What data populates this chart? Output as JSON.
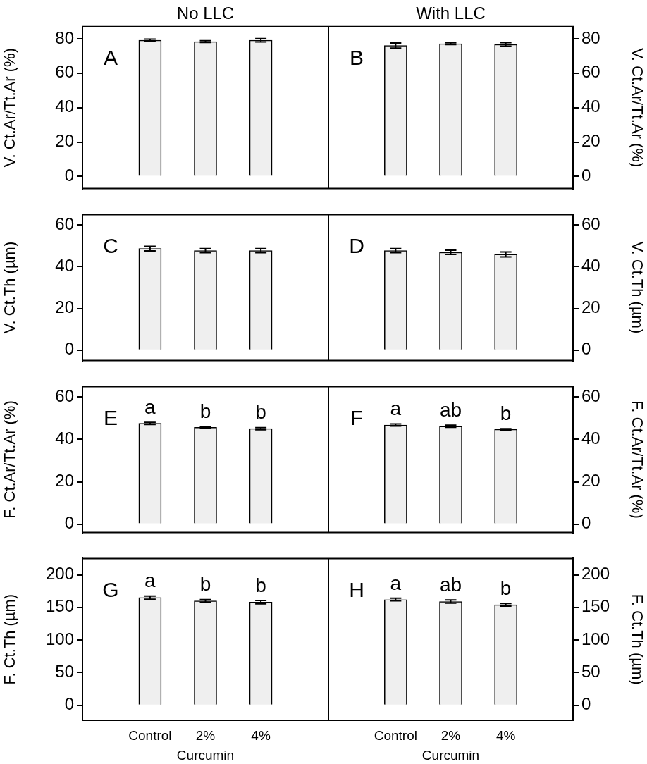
{
  "chart_data": [
    {
      "type": "bar",
      "title": "No LLC",
      "categories": [
        "Control",
        "2%",
        "4%"
      ],
      "series": [
        {
          "color": "#efefef",
          "values": [
            79.1,
            78.3,
            79.1
          ],
          "errors": [
            0.7,
            0.5,
            1.0
          ]
        }
      ],
      "ylabel": "V. Ct.Ar/Tt.Ar (%)",
      "ylim": [
        -7,
        87
      ],
      "yticks": [
        0,
        20,
        40,
        60,
        80
      ],
      "tick_labels": "y",
      "annotations": [
        "A"
      ]
    },
    {
      "type": "bar",
      "title": "With LLC",
      "categories": [
        "Control",
        "2%",
        "4%"
      ],
      "series": [
        {
          "color": "#efefef",
          "values": [
            76.0,
            77.1,
            76.7
          ],
          "errors": [
            1.5,
            0.5,
            1.0
          ]
        }
      ],
      "ylabel": "V. Ct.Ar/Tt.Ar (%)",
      "ylim": [
        -7,
        87
      ],
      "yticks": [
        0,
        20,
        40,
        60,
        80
      ],
      "tick_labels": "y",
      "annotations": [
        "B"
      ]
    },
    {
      "type": "bar",
      "categories": [
        "Control",
        "2%",
        "4%"
      ],
      "series": [
        {
          "color": "#efefef",
          "values": [
            48.7,
            47.7,
            47.7
          ],
          "errors": [
            1.1,
            1.0,
            1.0
          ]
        }
      ],
      "ylabel": "V. Ct.Th (µm)",
      "ylim": [
        -5,
        65
      ],
      "yticks": [
        0,
        20,
        40,
        60
      ],
      "tick_labels": "y",
      "annotations": [
        "C"
      ]
    },
    {
      "type": "bar",
      "categories": [
        "Control",
        "2%",
        "4%"
      ],
      "series": [
        {
          "color": "#efefef",
          "values": [
            47.7,
            46.9,
            45.9
          ],
          "errors": [
            1.0,
            1.0,
            1.2
          ]
        }
      ],
      "ylabel": "V. Ct.Th (µm)",
      "ylim": [
        -5,
        65
      ],
      "yticks": [
        0,
        20,
        40,
        60
      ],
      "tick_labels": "y",
      "annotations": [
        "D"
      ]
    },
    {
      "type": "bar",
      "categories": [
        "Control",
        "2%",
        "4%"
      ],
      "series": [
        {
          "color": "#efefef",
          "values": [
            47.6,
            45.7,
            45.1
          ],
          "errors": [
            0.5,
            0.4,
            0.5
          ]
        }
      ],
      "ylabel": "F. Ct.Ar/Tt.Ar (%)",
      "ylim": [
        -4,
        65
      ],
      "yticks": [
        0,
        20,
        40,
        60
      ],
      "tick_labels": "y",
      "annotations": [
        "E",
        {
          "text": "a",
          "x": "Control",
          "y": 47.6
        },
        {
          "text": "b",
          "x": "2%",
          "y": 45.7
        },
        {
          "text": "b",
          "x": "4%",
          "y": 45.1
        }
      ]
    },
    {
      "type": "bar",
      "categories": [
        "Control",
        "2%",
        "4%"
      ],
      "series": [
        {
          "color": "#efefef",
          "values": [
            46.8,
            46.2,
            44.8
          ],
          "errors": [
            0.5,
            0.5,
            0.3
          ]
        }
      ],
      "ylabel": "F. Ct.Ar/Tt.Ar (%)",
      "ylim": [
        -4,
        65
      ],
      "yticks": [
        0,
        20,
        40,
        60
      ],
      "tick_labels": "y",
      "annotations": [
        "F",
        {
          "text": "a",
          "x": "Control",
          "y": 46.8
        },
        {
          "text": "ab",
          "x": "2%",
          "y": 46.2
        },
        {
          "text": "b",
          "x": "4%",
          "y": 44.8
        }
      ]
    },
    {
      "type": "bar",
      "categories": [
        "Control",
        "2%",
        "4%"
      ],
      "series": [
        {
          "color": "#efefef",
          "values": [
            165,
            160,
            158
          ],
          "errors": [
            2.5,
            2,
            2.5
          ]
        }
      ],
      "ylabel": "F. Ct.Th (µm)",
      "ylim": [
        -23,
        225
      ],
      "yticks": [
        0,
        50,
        100,
        150,
        200
      ],
      "xlabel": "Curcumin",
      "annotations": [
        "G",
        {
          "text": "a",
          "x": "Control",
          "y": 165
        },
        {
          "text": "b",
          "x": "2%",
          "y": 160
        },
        {
          "text": "b",
          "x": "4%",
          "y": 158
        }
      ]
    },
    {
      "type": "bar",
      "categories": [
        "Control",
        "2%",
        "4%"
      ],
      "series": [
        {
          "color": "#efefef",
          "values": [
            162,
            159,
            154
          ],
          "errors": [
            2,
            2.5,
            2
          ]
        }
      ],
      "ylabel": "F. Ct.Th (µm)",
      "ylim": [
        -23,
        225
      ],
      "yticks": [
        0,
        50,
        100,
        150,
        200
      ],
      "xlabel": "Curcumin",
      "annotations": [
        "H",
        {
          "text": "a",
          "x": "Control",
          "y": 162
        },
        {
          "text": "ab",
          "x": "2%",
          "y": 159
        },
        {
          "text": "b",
          "x": "4%",
          "y": 154
        }
      ]
    }
  ]
}
